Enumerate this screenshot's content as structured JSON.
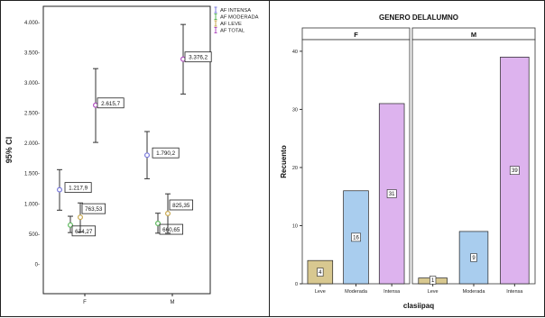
{
  "chart_data": [
    {
      "type": "errorbar",
      "ylabel": "95% CI",
      "categories": [
        "F",
        "M"
      ],
      "ylim": [
        -500,
        4250
      ],
      "yticks": [
        0,
        500,
        1000,
        1500,
        2000,
        2500,
        3000,
        3500,
        4000
      ],
      "ytick_labels": [
        "0-",
        "500-",
        "1.000-",
        "1.500-",
        "2.000-",
        "2.500-",
        "3.000-",
        "3.500-",
        "4.000-"
      ],
      "legend_position": "top-right",
      "series": [
        {
          "name": "AF INTENSA",
          "color": "#7a7adc",
          "mean": [
            1217.9,
            1790.2
          ],
          "lower": [
            880,
            1400
          ],
          "upper": [
            1550,
            2180
          ],
          "labels": [
            "1.217,9",
            "1.790,2"
          ]
        },
        {
          "name": "AF MODERADA",
          "color": "#5cb85c",
          "mean": [
            634.27,
            660.65
          ],
          "lower": [
            510,
            500
          ],
          "upper": [
            780,
            830
          ],
          "labels": [
            "634,27",
            "660,65"
          ]
        },
        {
          "name": "AF LEVE",
          "color": "#c8a850",
          "mean": [
            763.53,
            825.35
          ],
          "lower": [
            520,
            500
          ],
          "upper": [
            1000,
            1150
          ],
          "labels": [
            "763,53",
            "825,35"
          ]
        },
        {
          "name": "AF TOTAL",
          "color": "#b04fc0",
          "mean": [
            2615.7,
            3376.2
          ],
          "lower": [
            2000,
            2800
          ],
          "upper": [
            3220,
            3950
          ],
          "labels": [
            "2.615,7",
            "3.376,2"
          ]
        }
      ]
    },
    {
      "type": "bar",
      "title": "GENERO DELALUMNO",
      "xlabel": "clasiipaq",
      "ylabel": "Recuento",
      "ylim": [
        0,
        42
      ],
      "yticks": [
        0,
        10,
        20,
        30,
        40
      ],
      "categories": [
        "Leve",
        "Moderada",
        "Intensa"
      ],
      "colors": [
        "#d8c890",
        "#a9cdee",
        "#ddb3ee"
      ],
      "facets": [
        {
          "name": "F",
          "values": [
            4,
            16,
            31
          ]
        },
        {
          "name": "M",
          "values": [
            1,
            9,
            39
          ]
        }
      ]
    }
  ]
}
